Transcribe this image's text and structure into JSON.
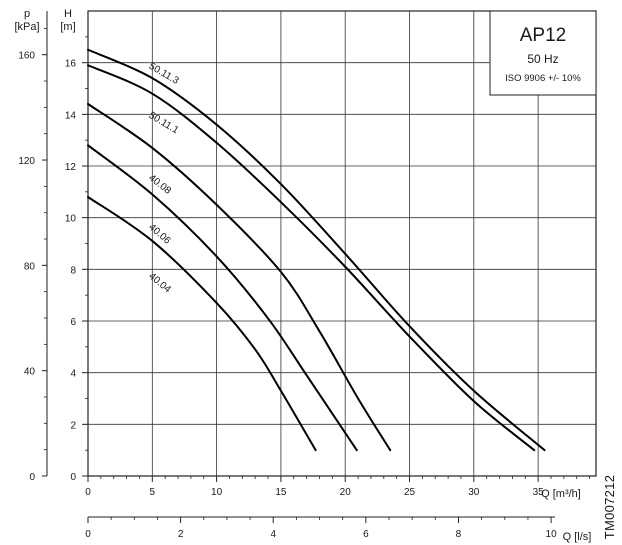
{
  "chart_data": {
    "type": "line",
    "title": "AP12",
    "info_box": {
      "title": "AP12",
      "frequency": "50 Hz",
      "tolerance": "ISO 9906 +/- 10%"
    },
    "document_id": "TM007212",
    "x_axis": {
      "unit_label": "Q [m³/h]",
      "range": [
        0,
        39.5
      ],
      "ticks": [
        "0",
        "5",
        "10",
        "15",
        "20",
        "25",
        "30",
        "35"
      ]
    },
    "x2_axis": {
      "unit_label": "Q [l/s]",
      "range": [
        0,
        10.97
      ],
      "ticks": [
        "0",
        "2",
        "4",
        "6",
        "8",
        "10"
      ]
    },
    "y_axis": {
      "symbol": "H",
      "unit_label": "[m]",
      "range": [
        0,
        18
      ],
      "ticks": [
        "0",
        "2",
        "4",
        "6",
        "8",
        "10",
        "12",
        "14",
        "16"
      ]
    },
    "y2_axis": {
      "symbol": "p",
      "unit_label": "[kPa]",
      "range": [
        0,
        176.6
      ],
      "ticks": [
        "0",
        "40",
        "80",
        "120",
        "160"
      ]
    },
    "grid": true,
    "series": [
      {
        "name": "50.11.3",
        "label_at": [
          5,
          15.8
        ],
        "points": [
          [
            0,
            16.5
          ],
          [
            5,
            15.4
          ],
          [
            10,
            13.6
          ],
          [
            15,
            11.3
          ],
          [
            20,
            8.6
          ],
          [
            25,
            5.8
          ],
          [
            30,
            3.3
          ],
          [
            35.5,
            1.0
          ]
        ]
      },
      {
        "name": "50.11.1",
        "label_at": [
          5,
          13.9
        ],
        "points": [
          [
            0,
            15.9
          ],
          [
            5,
            14.8
          ],
          [
            10,
            12.9
          ],
          [
            15,
            10.6
          ],
          [
            20,
            8.1
          ],
          [
            25,
            5.4
          ],
          [
            30,
            2.9
          ],
          [
            34.7,
            1.0
          ]
        ]
      },
      {
        "name": "40.08",
        "label_at": [
          5,
          11.5
        ],
        "points": [
          [
            0,
            14.4
          ],
          [
            5,
            12.7
          ],
          [
            10,
            10.5
          ],
          [
            15,
            7.9
          ],
          [
            18,
            5.6
          ],
          [
            21,
            3.0
          ],
          [
            23.5,
            1.0
          ]
        ]
      },
      {
        "name": "40.06",
        "label_at": [
          5,
          9.6
        ],
        "points": [
          [
            0,
            12.8
          ],
          [
            5,
            10.9
          ],
          [
            10,
            8.5
          ],
          [
            14,
            6.1
          ],
          [
            17,
            3.9
          ],
          [
            20.9,
            1.0
          ]
        ]
      },
      {
        "name": "40.04",
        "label_at": [
          5,
          7.7
        ],
        "points": [
          [
            0,
            10.8
          ],
          [
            5,
            9.1
          ],
          [
            10,
            6.7
          ],
          [
            13,
            4.9
          ],
          [
            15,
            3.3
          ],
          [
            17.7,
            1.0
          ]
        ]
      }
    ]
  }
}
